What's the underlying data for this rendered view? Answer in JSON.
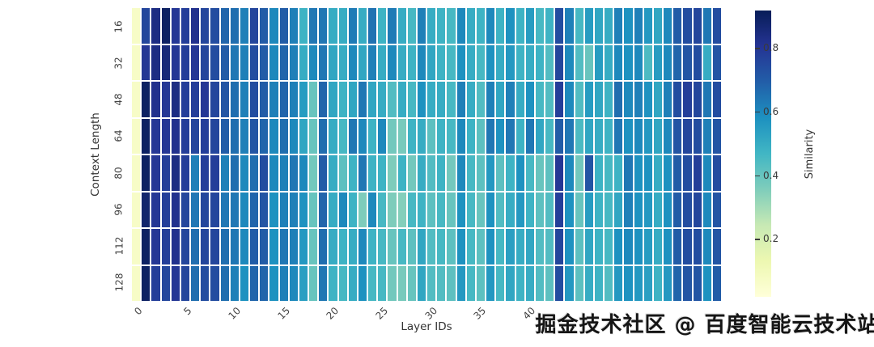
{
  "watermark": {
    "text": "掘金技术社区 @ 百度智能云技术站"
  },
  "colors": {
    "background": "#ffffff",
    "gridline": "#e6ecf8",
    "tick_text": "#444444",
    "axis_title_text": "#333333",
    "watermark_text": "#151515"
  },
  "chart_data": {
    "type": "heatmap",
    "xlabel": "Layer IDs",
    "ylabel": "Context Length",
    "row_labels": [
      "16",
      "32",
      "48",
      "64",
      "80",
      "96",
      "112",
      "128"
    ],
    "n_columns": 60,
    "visible_x_ticks": [
      0,
      5,
      10,
      15,
      20,
      25,
      30,
      35,
      40
    ],
    "colorbar": {
      "label": "Similarity",
      "ticks": [
        0.2,
        0.4,
        0.6,
        0.8
      ],
      "vmin": 0.02,
      "vmax": 0.92,
      "colormap_name": "YlGnBu",
      "colormap_stops": [
        [
          0.0,
          "#ffffd9"
        ],
        [
          0.125,
          "#edf8b1"
        ],
        [
          0.25,
          "#c7e9b4"
        ],
        [
          0.375,
          "#7fcdbb"
        ],
        [
          0.5,
          "#41b6c4"
        ],
        [
          0.625,
          "#1d91c0"
        ],
        [
          0.75,
          "#225ea8"
        ],
        [
          0.875,
          "#253494"
        ],
        [
          1.0,
          "#081d58"
        ]
      ]
    },
    "values": [
      [
        0.07,
        0.76,
        0.84,
        0.9,
        0.8,
        0.78,
        0.82,
        0.76,
        0.74,
        0.68,
        0.66,
        0.62,
        0.76,
        0.7,
        0.6,
        0.7,
        0.62,
        0.48,
        0.64,
        0.64,
        0.5,
        0.5,
        0.63,
        0.5,
        0.65,
        0.48,
        0.63,
        0.5,
        0.46,
        0.62,
        0.5,
        0.48,
        0.46,
        0.6,
        0.5,
        0.48,
        0.6,
        0.48,
        0.58,
        0.48,
        0.55,
        0.46,
        0.48,
        0.74,
        0.62,
        0.46,
        0.55,
        0.52,
        0.5,
        0.62,
        0.58,
        0.62,
        0.56,
        0.52,
        0.6,
        0.7,
        0.74,
        0.76,
        0.64,
        0.74
      ],
      [
        0.07,
        0.8,
        0.84,
        0.86,
        0.8,
        0.78,
        0.8,
        0.76,
        0.74,
        0.7,
        0.64,
        0.62,
        0.74,
        0.7,
        0.6,
        0.68,
        0.62,
        0.5,
        0.6,
        0.64,
        0.52,
        0.5,
        0.6,
        0.52,
        0.62,
        0.5,
        0.6,
        0.5,
        0.48,
        0.6,
        0.52,
        0.48,
        0.46,
        0.58,
        0.5,
        0.46,
        0.58,
        0.5,
        0.56,
        0.48,
        0.5,
        0.48,
        0.44,
        0.76,
        0.6,
        0.44,
        0.4,
        0.55,
        0.5,
        0.6,
        0.58,
        0.6,
        0.45,
        0.55,
        0.6,
        0.68,
        0.72,
        0.74,
        0.5,
        0.72
      ],
      [
        0.07,
        0.9,
        0.82,
        0.8,
        0.84,
        0.78,
        0.78,
        0.8,
        0.76,
        0.72,
        0.66,
        0.62,
        0.74,
        0.7,
        0.62,
        0.68,
        0.62,
        0.55,
        0.4,
        0.68,
        0.52,
        0.48,
        0.52,
        0.64,
        0.52,
        0.5,
        0.44,
        0.5,
        0.46,
        0.58,
        0.5,
        0.5,
        0.46,
        0.62,
        0.5,
        0.44,
        0.62,
        0.52,
        0.62,
        0.5,
        0.58,
        0.46,
        0.44,
        0.78,
        0.6,
        0.44,
        0.55,
        0.52,
        0.48,
        0.66,
        0.6,
        0.62,
        0.58,
        0.52,
        0.62,
        0.74,
        0.78,
        0.76,
        0.64,
        0.74
      ],
      [
        0.07,
        0.9,
        0.8,
        0.8,
        0.82,
        0.78,
        0.76,
        0.78,
        0.76,
        0.7,
        0.66,
        0.62,
        0.72,
        0.68,
        0.6,
        0.66,
        0.6,
        0.52,
        0.4,
        0.66,
        0.5,
        0.46,
        0.64,
        0.6,
        0.48,
        0.6,
        0.38,
        0.37,
        0.48,
        0.5,
        0.42,
        0.48,
        0.46,
        0.6,
        0.48,
        0.42,
        0.64,
        0.58,
        0.64,
        0.48,
        0.64,
        0.52,
        0.46,
        0.7,
        0.64,
        0.45,
        0.52,
        0.5,
        0.48,
        0.64,
        0.58,
        0.6,
        0.56,
        0.52,
        0.6,
        0.72,
        0.76,
        0.74,
        0.62,
        0.72
      ],
      [
        0.07,
        0.9,
        0.8,
        0.78,
        0.84,
        0.78,
        0.62,
        0.78,
        0.78,
        0.62,
        0.66,
        0.6,
        0.66,
        0.74,
        0.6,
        0.62,
        0.64,
        0.6,
        0.38,
        0.7,
        0.5,
        0.42,
        0.48,
        0.64,
        0.48,
        0.48,
        0.36,
        0.48,
        0.38,
        0.5,
        0.44,
        0.48,
        0.38,
        0.6,
        0.46,
        0.42,
        0.56,
        0.42,
        0.48,
        0.58,
        0.46,
        0.4,
        0.42,
        0.8,
        0.6,
        0.38,
        0.72,
        0.48,
        0.46,
        0.48,
        0.64,
        0.58,
        0.58,
        0.5,
        0.58,
        0.7,
        0.74,
        0.78,
        0.6,
        0.74
      ],
      [
        0.07,
        0.88,
        0.8,
        0.78,
        0.82,
        0.76,
        0.64,
        0.76,
        0.76,
        0.64,
        0.64,
        0.6,
        0.68,
        0.72,
        0.58,
        0.62,
        0.62,
        0.58,
        0.4,
        0.68,
        0.5,
        0.6,
        0.48,
        0.36,
        0.6,
        0.46,
        0.36,
        0.35,
        0.46,
        0.48,
        0.42,
        0.46,
        0.4,
        0.58,
        0.46,
        0.4,
        0.58,
        0.44,
        0.5,
        0.56,
        0.48,
        0.42,
        0.44,
        0.78,
        0.58,
        0.4,
        0.55,
        0.48,
        0.46,
        0.52,
        0.62,
        0.58,
        0.56,
        0.5,
        0.58,
        0.7,
        0.74,
        0.76,
        0.6,
        0.72
      ],
      [
        0.07,
        0.9,
        0.8,
        0.78,
        0.82,
        0.76,
        0.66,
        0.76,
        0.76,
        0.66,
        0.64,
        0.6,
        0.7,
        0.7,
        0.58,
        0.64,
        0.62,
        0.56,
        0.4,
        0.66,
        0.5,
        0.48,
        0.5,
        0.6,
        0.48,
        0.46,
        0.4,
        0.46,
        0.42,
        0.52,
        0.44,
        0.46,
        0.42,
        0.58,
        0.46,
        0.42,
        0.58,
        0.46,
        0.54,
        0.5,
        0.52,
        0.44,
        0.44,
        0.76,
        0.58,
        0.42,
        0.52,
        0.48,
        0.46,
        0.58,
        0.6,
        0.58,
        0.55,
        0.5,
        0.58,
        0.7,
        0.74,
        0.74,
        0.6,
        0.72
      ],
      [
        0.07,
        0.9,
        0.78,
        0.76,
        0.8,
        0.76,
        0.66,
        0.74,
        0.74,
        0.66,
        0.62,
        0.58,
        0.68,
        0.68,
        0.58,
        0.62,
        0.6,
        0.54,
        0.4,
        0.64,
        0.48,
        0.46,
        0.5,
        0.58,
        0.46,
        0.46,
        0.38,
        0.37,
        0.4,
        0.52,
        0.44,
        0.44,
        0.42,
        0.56,
        0.46,
        0.42,
        0.56,
        0.46,
        0.52,
        0.48,
        0.5,
        0.44,
        0.42,
        0.74,
        0.56,
        0.42,
        0.5,
        0.48,
        0.44,
        0.56,
        0.58,
        0.56,
        0.54,
        0.48,
        0.56,
        0.68,
        0.72,
        0.72,
        0.58,
        0.7
      ]
    ]
  }
}
